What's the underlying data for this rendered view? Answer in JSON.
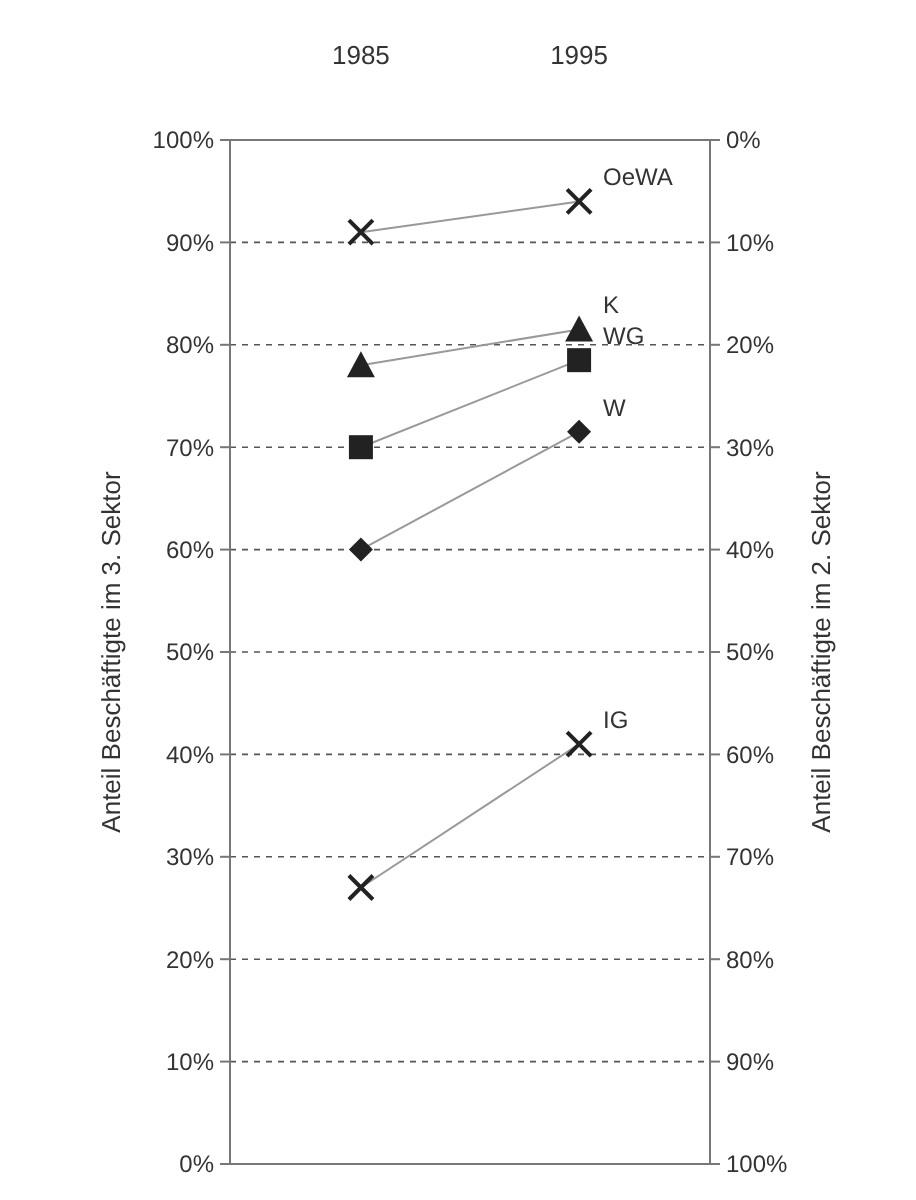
{
  "chart_data": {
    "type": "line",
    "categories": [
      "1985",
      "1995"
    ],
    "series": [
      {
        "name": "OeWA",
        "color": "#222222",
        "marker": "cross",
        "values": [
          91,
          94
        ]
      },
      {
        "name": "K",
        "color": "#222222",
        "marker": "triangle",
        "values": [
          78,
          81.5
        ]
      },
      {
        "name": "WG",
        "color": "#222222",
        "marker": "square",
        "values": [
          70,
          78.5
        ]
      },
      {
        "name": "W",
        "color": "#222222",
        "marker": "diamond",
        "values": [
          60,
          71.5
        ]
      },
      {
        "name": "IG",
        "color": "#222222",
        "marker": "cross",
        "values": [
          27,
          41
        ]
      }
    ],
    "ylabel": "Anteil Beschäftigte im 3. Sektor",
    "y2label": "Anteil Beschäftigte im 2. Sektor",
    "ylim": [
      0,
      100
    ],
    "yticks": [
      {
        "value": 0,
        "label": "0%"
      },
      {
        "value": 10,
        "label": "10%"
      },
      {
        "value": 20,
        "label": "20%"
      },
      {
        "value": 30,
        "label": "30%"
      },
      {
        "value": 40,
        "label": "40%"
      },
      {
        "value": 50,
        "label": "50%"
      },
      {
        "value": 60,
        "label": "60%"
      },
      {
        "value": 70,
        "label": "70%"
      },
      {
        "value": 80,
        "label": "80%"
      },
      {
        "value": 90,
        "label": "90%"
      },
      {
        "value": 100,
        "label": "100%"
      }
    ],
    "y2lim": [
      100,
      0
    ],
    "y2ticks": [
      {
        "value": 0,
        "label": "0%"
      },
      {
        "value": 10,
        "label": "10%"
      },
      {
        "value": 20,
        "label": "20%"
      },
      {
        "value": 30,
        "label": "30%"
      },
      {
        "value": 40,
        "label": "40%"
      },
      {
        "value": 50,
        "label": "50%"
      },
      {
        "value": 60,
        "label": "60%"
      },
      {
        "value": 70,
        "label": "70%"
      },
      {
        "value": 80,
        "label": "80%"
      },
      {
        "value": 90,
        "label": "90%"
      },
      {
        "value": 100,
        "label": "100%"
      }
    ],
    "grid": "y",
    "line_style": "solid"
  }
}
